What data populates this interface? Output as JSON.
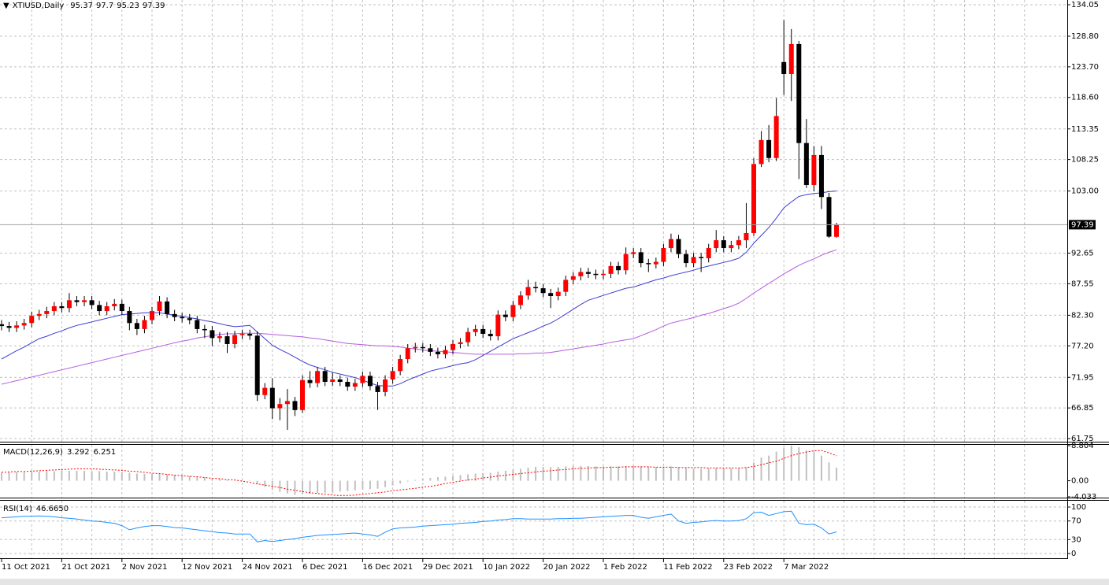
{
  "chart_data": [
    {
      "type": "candlestick",
      "title": "XTIUSD,Daily",
      "categories": [
        "11 Oct 2021",
        null,
        null,
        null,
        null,
        null,
        null,
        null,
        "21 Oct 2021",
        null,
        null,
        null,
        null,
        null,
        null,
        null,
        "2 Nov 2021",
        null,
        null,
        null,
        null,
        null,
        null,
        null,
        "12 Nov 2021",
        null,
        null,
        null,
        null,
        null,
        null,
        null,
        "24 Nov 2021",
        null,
        null,
        null,
        null,
        null,
        null,
        null,
        "6 Dec 2021",
        null,
        null,
        null,
        null,
        null,
        null,
        null,
        "16 Dec 2021",
        null,
        null,
        null,
        null,
        null,
        null,
        null,
        "29 Dec 2021",
        null,
        null,
        null,
        null,
        null,
        null,
        null,
        "10 Jan 2022",
        null,
        null,
        null,
        null,
        null,
        null,
        null,
        "20 Jan 2022",
        null,
        null,
        null,
        null,
        null,
        null,
        null,
        "1 Feb 2022",
        null,
        null,
        null,
        null,
        null,
        null,
        null,
        "11 Feb 2022",
        null,
        null,
        null,
        null,
        null,
        null,
        null,
        "23 Feb 2022",
        null,
        null,
        null,
        null,
        null,
        null,
        null,
        "7 Mar 2022",
        null,
        null,
        null,
        null,
        null,
        null,
        null
      ],
      "open": [
        80.8,
        80.5,
        80.2,
        80.6,
        81.0,
        82.2,
        82.5,
        83.0,
        83.8,
        83.5,
        84.8,
        84.5,
        84.8,
        84.0,
        83.0,
        83.8,
        84.2,
        83.0,
        81.0,
        80.0,
        81.5,
        83.0,
        84.6,
        82.5,
        82.0,
        81.8,
        81.5,
        80.0,
        79.8,
        78.5,
        78.8,
        77.5,
        79.0,
        79.2,
        78.9,
        69.0,
        70.2,
        66.8,
        67.5,
        68.0,
        66.5,
        71.5,
        71.0,
        73.0,
        71.2,
        71.6,
        71.2,
        70.4,
        71.0,
        72.2,
        70.5,
        69.5,
        71.6,
        73.0,
        75.0,
        76.8,
        77.0,
        76.8,
        76.2,
        75.8,
        76.5,
        77.5,
        77.8,
        79.5,
        80.0,
        79.2,
        78.8,
        82.4,
        82.0,
        84.0,
        85.6,
        87.0,
        86.8,
        86.0,
        85.5,
        86.2,
        88.2,
        88.8,
        89.5,
        89.2,
        89.0,
        89.2,
        90.5,
        89.8,
        92.5,
        92.8,
        91.0,
        90.8,
        91.2,
        93.5,
        95.0,
        92.5,
        91.0,
        92.0,
        91.8,
        93.5,
        94.8,
        93.5,
        94.0,
        94.8,
        96.0,
        107.5,
        111.5,
        108.5,
        124.5,
        122.5,
        127.5,
        111.0,
        104.0,
        109.0,
        102.0,
        95.37
      ],
      "high": [
        81.5,
        81.2,
        81.3,
        81.7,
        82.9,
        83.2,
        83.7,
        84.5,
        84.5,
        86.0,
        85.5,
        85.5,
        85.5,
        84.7,
        84.5,
        85.0,
        84.9,
        83.7,
        81.7,
        82.2,
        83.7,
        85.5,
        85.3,
        83.2,
        82.7,
        82.5,
        82.2,
        80.7,
        80.5,
        79.5,
        79.5,
        79.7,
        79.9,
        79.9,
        79.6,
        71.0,
        71.8,
        68.5,
        70.0,
        68.7,
        72.3,
        73.0,
        73.7,
        73.7,
        72.8,
        72.3,
        71.9,
        71.7,
        72.9,
        72.9,
        71.2,
        72.3,
        73.7,
        75.7,
        77.5,
        77.7,
        77.7,
        77.5,
        76.9,
        77.2,
        78.2,
        78.5,
        80.2,
        80.7,
        80.7,
        79.9,
        83.1,
        83.1,
        84.7,
        86.3,
        88.2,
        87.9,
        87.5,
        86.7,
        86.9,
        88.9,
        89.5,
        90.2,
        90.2,
        89.9,
        89.9,
        91.2,
        91.2,
        93.6,
        93.5,
        93.5,
        91.7,
        91.9,
        94.2,
        95.9,
        95.7,
        93.2,
        92.7,
        92.7,
        94.2,
        96.5,
        95.5,
        94.7,
        95.5,
        101.0,
        108.5,
        113.0,
        114.0,
        118.5,
        131.5,
        130.0,
        128.0,
        115.0,
        110.5,
        110.5,
        102.7,
        97.7
      ],
      "low": [
        79.8,
        79.5,
        79.5,
        79.9,
        80.3,
        81.5,
        81.8,
        82.3,
        82.8,
        82.8,
        83.8,
        83.8,
        83.3,
        82.3,
        82.3,
        83.1,
        82.3,
        79.8,
        79.0,
        79.3,
        80.8,
        82.3,
        81.8,
        81.3,
        81.1,
        80.8,
        79.3,
        78.5,
        77.2,
        77.8,
        76.0,
        76.8,
        78.3,
        78.2,
        68.0,
        68.3,
        65.0,
        64.8,
        63.2,
        65.5,
        66.0,
        70.2,
        70.3,
        70.5,
        70.5,
        70.5,
        69.7,
        69.7,
        70.3,
        69.8,
        66.5,
        68.8,
        70.9,
        72.3,
        74.3,
        76.1,
        76.1,
        75.5,
        75.1,
        75.1,
        75.8,
        76.8,
        77.1,
        78.8,
        78.5,
        78.1,
        78.1,
        81.3,
        81.3,
        83.3,
        84.9,
        86.1,
        85.3,
        83.5,
        84.8,
        85.5,
        87.5,
        88.1,
        88.5,
        88.3,
        88.3,
        88.5,
        89.1,
        89.1,
        91.8,
        90.3,
        89.5,
        90.1,
        90.5,
        92.8,
        91.8,
        90.3,
        90.3,
        89.5,
        91.1,
        92.8,
        92.8,
        92.8,
        93.3,
        93.5,
        95.5,
        107.0,
        107.8,
        108.0,
        119.0,
        118.0,
        105.0,
        103.5,
        103.0,
        100.0,
        95.2,
        95.23
      ],
      "close": [
        80.5,
        80.2,
        80.6,
        81.0,
        82.2,
        82.5,
        83.0,
        83.8,
        83.5,
        84.8,
        84.5,
        84.8,
        84.0,
        83.0,
        83.8,
        84.2,
        83.0,
        81.0,
        80.0,
        81.5,
        83.0,
        84.6,
        82.5,
        82.0,
        81.8,
        81.5,
        80.0,
        79.8,
        78.5,
        78.8,
        77.5,
        79.0,
        79.2,
        78.9,
        69.0,
        70.2,
        66.8,
        67.5,
        68.0,
        66.5,
        71.5,
        71.0,
        73.0,
        71.2,
        71.6,
        71.2,
        70.4,
        71.0,
        72.2,
        70.5,
        69.5,
        71.6,
        73.0,
        75.0,
        76.8,
        77.0,
        76.8,
        76.2,
        75.8,
        76.5,
        77.5,
        77.8,
        79.5,
        80.0,
        79.2,
        78.8,
        82.4,
        82.0,
        84.0,
        85.6,
        87.0,
        86.8,
        86.0,
        85.5,
        86.2,
        88.2,
        88.8,
        89.5,
        89.2,
        89.0,
        89.2,
        90.5,
        89.8,
        92.5,
        92.8,
        91.0,
        90.8,
        91.2,
        93.5,
        95.0,
        92.5,
        91.0,
        92.0,
        91.8,
        93.5,
        94.8,
        93.5,
        94.0,
        94.8,
        96.0,
        107.5,
        111.5,
        108.5,
        115.5,
        122.5,
        127.5,
        111.0,
        104.0,
        109.0,
        102.0,
        95.4,
        97.39
      ],
      "series": [
        {
          "color": "#3c3cd2",
          "values": [
            75.0,
            75.7,
            76.4,
            77.0,
            77.7,
            78.4,
            78.8,
            79.3,
            79.7,
            80.2,
            80.6,
            80.9,
            81.2,
            81.5,
            81.8,
            82.1,
            82.4,
            82.5,
            82.6,
            82.7,
            82.75,
            82.7,
            82.5,
            82.3,
            82.1,
            81.9,
            81.7,
            81.4,
            81.2,
            80.9,
            80.6,
            80.4,
            80.5,
            80.6,
            79.5,
            78.4,
            77.3,
            76.6,
            76.0,
            75.3,
            74.6,
            74.0,
            73.6,
            73.2,
            72.8,
            72.5,
            72.2,
            71.9,
            71.5,
            71.0,
            70.6,
            70.5,
            70.5,
            70.9,
            71.5,
            72.0,
            72.5,
            73.0,
            73.3,
            73.6,
            73.9,
            74.2,
            74.4,
            74.9,
            75.6,
            76.3,
            77.0,
            77.7,
            78.4,
            78.9,
            79.4,
            79.9,
            80.5,
            81.0,
            81.7,
            82.5,
            83.3,
            84.1,
            84.8,
            85.2,
            85.6,
            86.0,
            86.4,
            86.8,
            87.0,
            87.4,
            87.8,
            88.2,
            88.5,
            88.9,
            89.2,
            89.5,
            89.8,
            90.2,
            90.5,
            90.8,
            91.1,
            91.4,
            91.8,
            92.8,
            94.3,
            95.6,
            96.9,
            98.5,
            100.2,
            101.2,
            102.1,
            102.4,
            102.6,
            102.7,
            102.9,
            103.0
          ]
        },
        {
          "color": "#b55ee0",
          "values": [
            70.8,
            71.1,
            71.4,
            71.7,
            72.0,
            72.3,
            72.6,
            72.9,
            73.2,
            73.5,
            73.8,
            74.1,
            74.4,
            74.7,
            75.0,
            75.3,
            75.6,
            75.9,
            76.2,
            76.5,
            76.8,
            77.1,
            77.4,
            77.7,
            78.0,
            78.2,
            78.5,
            78.7,
            78.9,
            79.1,
            79.2,
            79.2,
            79.3,
            79.3,
            79.3,
            79.2,
            79.1,
            79.0,
            78.9,
            78.8,
            78.7,
            78.5,
            78.4,
            78.2,
            78.0,
            77.8,
            77.6,
            77.5,
            77.4,
            77.3,
            77.2,
            77.2,
            77.1,
            77.0,
            76.8,
            76.7,
            76.5,
            76.4,
            76.3,
            76.2,
            76.1,
            76.0,
            75.9,
            75.8,
            75.8,
            75.8,
            75.8,
            75.8,
            75.8,
            75.9,
            75.9,
            76.0,
            76.0,
            76.1,
            76.3,
            76.5,
            76.7,
            76.9,
            77.1,
            77.3,
            77.5,
            77.8,
            78.0,
            78.2,
            78.4,
            78.9,
            79.4,
            79.9,
            80.5,
            81.0,
            81.3,
            81.6,
            81.9,
            82.3,
            82.6,
            83.0,
            83.4,
            83.8,
            84.3,
            85.1,
            86.0,
            86.8,
            87.6,
            88.4,
            89.2,
            89.9,
            90.6,
            91.2,
            91.7,
            92.3,
            92.8,
            93.2
          ]
        }
      ],
      "up_color": "#ff0000",
      "down_color": "#000000",
      "ylim": [
        61.75,
        134.05
      ],
      "yticks": [
        134.05,
        {
          "value": 128.8,
          "label": "128.80"
        },
        {
          "value": 123.7,
          "label": "123.70"
        },
        {
          "value": 118.6,
          "label": "118.60"
        },
        113.35,
        108.25,
        {
          "value": 103,
          "label": "103.00"
        },
        92.65,
        87.55,
        {
          "value": 82.3,
          "label": "82.30"
        },
        {
          "value": 77.2,
          "label": "77.20"
        },
        71.95,
        66.85,
        61.75
      ],
      "grid": true
    },
    {
      "type": "macd",
      "title": "MACD(12,26,9)",
      "values": [
        2.0,
        2.1,
        2.2,
        2.2,
        2.3,
        2.3,
        2.4,
        2.4,
        2.5,
        2.5,
        2.5,
        2.5,
        2.4,
        2.4,
        2.3,
        2.3,
        2.2,
        2.0,
        1.8,
        1.7,
        1.7,
        1.7,
        1.6,
        1.5,
        1.3,
        1.2,
        1.0,
        0.8,
        0.6,
        0.4,
        0.2,
        0.1,
        0.1,
        0.0,
        -0.8,
        -1.5,
        -2.3,
        -2.8,
        -3.2,
        -3.5,
        -3.4,
        -3.3,
        -3.1,
        -3.0,
        -2.9,
        -2.7,
        -2.6,
        -2.4,
        -2.2,
        -2.1,
        -2.0,
        -1.6,
        -1.2,
        -0.7,
        -0.2,
        0.2,
        0.5,
        0.7,
        0.9,
        1.0,
        1.2,
        1.4,
        1.6,
        1.8,
        1.9,
        2.0,
        2.3,
        2.5,
        2.8,
        3.0,
        3.3,
        3.5,
        3.5,
        3.4,
        3.5,
        3.6,
        3.7,
        3.7,
        3.7,
        3.6,
        3.6,
        3.6,
        3.6,
        3.7,
        3.7,
        3.6,
        3.5,
        3.4,
        3.5,
        3.6,
        3.4,
        3.2,
        3.1,
        3.0,
        3.1,
        3.2,
        3.1,
        3.1,
        3.1,
        3.3,
        4.6,
        5.8,
        6.3,
        7.3,
        8.3,
        8.8,
        8.4,
        7.6,
        7.2,
        6.3,
        4.6,
        3.292
      ],
      "signal": [
        2.1,
        2.2,
        2.3,
        2.3,
        2.4,
        2.5,
        2.6,
        2.7,
        2.8,
        2.9,
        3.0,
        3.0,
        3.0,
        2.9,
        2.8,
        2.7,
        2.6,
        2.4,
        2.3,
        2.1,
        1.9,
        1.8,
        1.6,
        1.4,
        1.3,
        1.1,
        1.0,
        0.8,
        0.6,
        0.5,
        0.3,
        0.2,
        -0.1,
        -0.4,
        -0.8,
        -1.1,
        -1.4,
        -1.7,
        -2.1,
        -2.4,
        -2.7,
        -3.0,
        -3.2,
        -3.4,
        -3.6,
        -3.7,
        -3.7,
        -3.6,
        -3.4,
        -3.2,
        -3.0,
        -2.8,
        -2.5,
        -2.3,
        -2.1,
        -1.9,
        -1.6,
        -1.4,
        -1.1,
        -0.7,
        -0.4,
        -0.1,
        0.2,
        0.4,
        0.7,
        0.9,
        1.2,
        1.4,
        1.6,
        1.8,
        2.0,
        2.2,
        2.4,
        2.5,
        2.7,
        2.8,
        3.0,
        3.1,
        3.2,
        3.3,
        3.3,
        3.4,
        3.4,
        3.5,
        3.5,
        3.5,
        3.5,
        3.4,
        3.4,
        3.4,
        3.3,
        3.3,
        3.3,
        3.3,
        3.2,
        3.2,
        3.2,
        3.2,
        3.2,
        3.3,
        3.6,
        4.0,
        4.5,
        4.9,
        5.6,
        6.3,
        6.8,
        7.2,
        7.5,
        7.6,
        7.0,
        6.251
      ],
      "color": "#c0c0c0",
      "signal_color": "#ff0000",
      "ylim": [
        -4.033,
        8.804
      ],
      "yticks": [
        8.804,
        {
          "value": 0,
          "label": "0.00"
        },
        -4.033
      ],
      "grid": false
    },
    {
      "type": "line",
      "title": "RSI(14)",
      "values": [
        77,
        78,
        79,
        80,
        80,
        81,
        80,
        79,
        77,
        76,
        74,
        72,
        70,
        69,
        67,
        65,
        60,
        51,
        55,
        58,
        60,
        60,
        58,
        56,
        55,
        53,
        51,
        49,
        47,
        45,
        44,
        42,
        42,
        42,
        25,
        28,
        26,
        28,
        30,
        32,
        35,
        37,
        39,
        40,
        41,
        42,
        43,
        44,
        42,
        40,
        37,
        46,
        53,
        55,
        56,
        57,
        59,
        60,
        61,
        62,
        63,
        65,
        66,
        67,
        69,
        70,
        72,
        73,
        75,
        75,
        74,
        74,
        74,
        74,
        75,
        75,
        76,
        76,
        77,
        78,
        79,
        80,
        81,
        82,
        82,
        78,
        76,
        79,
        82,
        85,
        70,
        65,
        67,
        68,
        70,
        71,
        70,
        70,
        71,
        75,
        88,
        89,
        82,
        86,
        90,
        91,
        65,
        62,
        63,
        55,
        42,
        46.665
      ],
      "value_labels": [
        null,
        null,
        null,
        null,
        null,
        null,
        null,
        null,
        null,
        null,
        null,
        null,
        null,
        null,
        null,
        null,
        null,
        null,
        null,
        null,
        null,
        null,
        null,
        null,
        null,
        null,
        null,
        null,
        null,
        null,
        null,
        null,
        null,
        null,
        null,
        null,
        null,
        null,
        null,
        null,
        null,
        null,
        null,
        null,
        null,
        null,
        null,
        null,
        null,
        null,
        null,
        null,
        null,
        null,
        null,
        null,
        null,
        null,
        null,
        null,
        null,
        null,
        null,
        null,
        null,
        null,
        null,
        null,
        null,
        null,
        null,
        null,
        null,
        null,
        null,
        null,
        null,
        null,
        null,
        null,
        null,
        null,
        null,
        null,
        null,
        null,
        null,
        null,
        null,
        null,
        null,
        null,
        null,
        null,
        null,
        null,
        null,
        null,
        null,
        null,
        null,
        null,
        null,
        null,
        null,
        null,
        null,
        null,
        null,
        null,
        null,
        "46.6650"
      ],
      "color": "#1e90ff",
      "ylim": [
        0,
        100
      ],
      "yticks": [
        100,
        70,
        30,
        0
      ],
      "grid": true
    }
  ]
}
